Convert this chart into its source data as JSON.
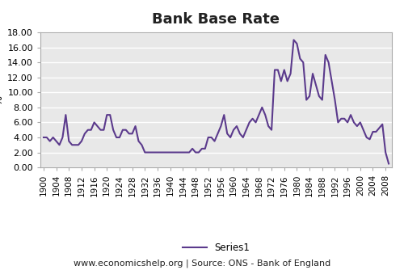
{
  "title": "Bank Base Rate",
  "ylabel": "%",
  "xlabel": "www.economicshelp.org | Source: ONS - Bank of England",
  "legend_label": "Series1",
  "line_color": "#5B3A8C",
  "line_width": 1.5,
  "background_color": "#ffffff",
  "plot_bg_color": "#E8E8E8",
  "grid_color": "#ffffff",
  "ylim": [
    0.0,
    18.0
  ],
  "yticks": [
    0.0,
    2.0,
    4.0,
    6.0,
    8.0,
    10.0,
    12.0,
    14.0,
    16.0,
    18.0
  ],
  "ytick_labels": [
    "0.00",
    "2.00",
    "4.00",
    "6.00",
    "8.00",
    "10.00",
    "12.00",
    "14.00",
    "16.00",
    "18.00"
  ],
  "xlim": [
    1899,
    2010
  ],
  "xticks": [
    1900,
    1904,
    1908,
    1912,
    1916,
    1920,
    1924,
    1928,
    1932,
    1936,
    1940,
    1944,
    1948,
    1952,
    1956,
    1960,
    1964,
    1968,
    1972,
    1976,
    1980,
    1984,
    1988,
    1992,
    1996,
    2000,
    2004,
    2008
  ],
  "years": [
    1900,
    1901,
    1902,
    1903,
    1904,
    1905,
    1906,
    1907,
    1908,
    1909,
    1910,
    1911,
    1912,
    1913,
    1914,
    1915,
    1916,
    1917,
    1918,
    1919,
    1920,
    1921,
    1922,
    1923,
    1924,
    1925,
    1926,
    1927,
    1928,
    1929,
    1930,
    1931,
    1932,
    1933,
    1934,
    1935,
    1936,
    1937,
    1938,
    1939,
    1940,
    1941,
    1942,
    1943,
    1944,
    1945,
    1946,
    1947,
    1948,
    1949,
    1950,
    1951,
    1952,
    1953,
    1954,
    1955,
    1956,
    1957,
    1958,
    1959,
    1960,
    1961,
    1962,
    1963,
    1964,
    1965,
    1966,
    1967,
    1968,
    1969,
    1970,
    1971,
    1972,
    1973,
    1974,
    1975,
    1976,
    1977,
    1978,
    1979,
    1980,
    1981,
    1982,
    1983,
    1984,
    1985,
    1986,
    1987,
    1988,
    1989,
    1990,
    1991,
    1992,
    1993,
    1994,
    1995,
    1996,
    1997,
    1998,
    1999,
    2000,
    2001,
    2002,
    2003,
    2004,
    2005,
    2006,
    2007,
    2008,
    2009
  ],
  "rates": [
    4.0,
    4.0,
    3.5,
    4.0,
    3.5,
    3.0,
    4.0,
    7.0,
    3.5,
    3.0,
    3.0,
    3.0,
    3.5,
    4.5,
    5.0,
    5.0,
    6.0,
    5.5,
    5.0,
    5.0,
    7.0,
    7.0,
    5.0,
    4.0,
    4.0,
    5.0,
    5.0,
    4.5,
    4.5,
    5.5,
    3.5,
    3.0,
    2.0,
    2.0,
    2.0,
    2.0,
    2.0,
    2.0,
    2.0,
    2.0,
    2.0,
    2.0,
    2.0,
    2.0,
    2.0,
    2.0,
    2.0,
    2.5,
    2.0,
    2.0,
    2.5,
    2.5,
    4.0,
    4.0,
    3.5,
    4.5,
    5.5,
    7.0,
    4.5,
    4.0,
    5.0,
    5.5,
    4.5,
    4.0,
    5.0,
    6.0,
    6.5,
    6.0,
    7.0,
    8.0,
    7.0,
    5.5,
    5.0,
    13.0,
    13.0,
    11.5,
    13.0,
    11.5,
    12.5,
    17.0,
    16.5,
    14.5,
    14.0,
    9.0,
    9.5,
    12.5,
    11.0,
    9.5,
    9.0,
    15.0,
    14.0,
    11.5,
    9.0,
    6.0,
    6.5,
    6.5,
    6.0,
    7.0,
    6.0,
    5.5,
    6.0,
    5.0,
    4.0,
    3.75,
    4.75,
    4.75,
    5.25,
    5.75,
    2.0,
    0.5
  ]
}
